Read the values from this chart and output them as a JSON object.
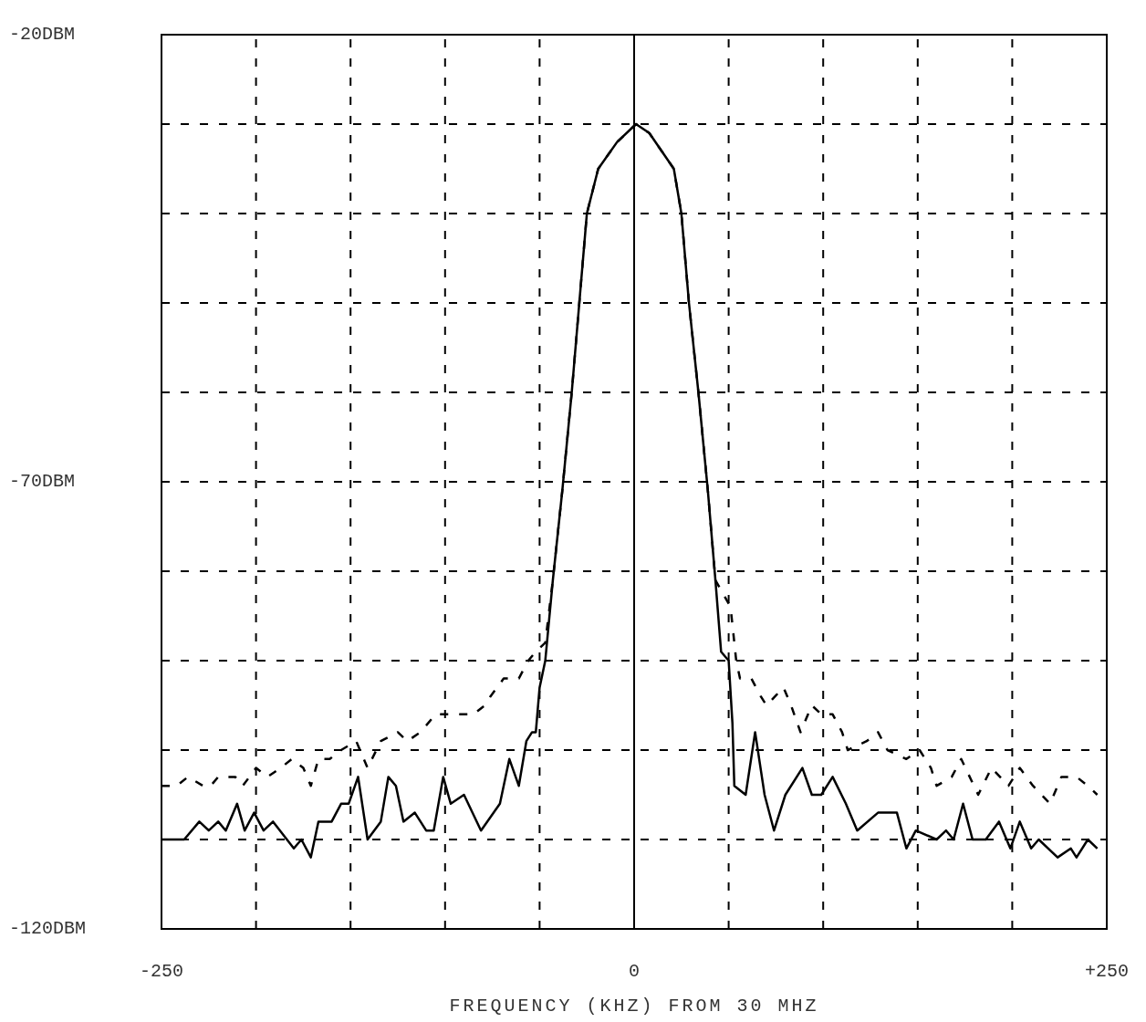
{
  "chart_data": {
    "type": "line",
    "xlabel": "FREQUENCY (KHZ) FROM 30 MHZ",
    "xlim": [
      -250,
      250
    ],
    "xticks": [
      -250,
      {
        "value": -200,
        "label": null
      },
      {
        "value": -150,
        "label": null
      },
      {
        "value": -100,
        "label": null
      },
      {
        "value": -50,
        "label": null
      },
      0,
      {
        "value": 50,
        "label": null
      },
      {
        "value": 100,
        "label": null
      },
      {
        "value": 150,
        "label": null
      },
      {
        "value": 200,
        "label": null
      },
      {
        "value": 250,
        "label": "+250"
      }
    ],
    "ylim": [
      -120,
      -20
    ],
    "yticks": [
      {
        "value": -20,
        "label": "-20DBM"
      },
      {
        "value": -30,
        "label": null
      },
      {
        "value": -40,
        "label": null
      },
      {
        "value": -50,
        "label": null
      },
      {
        "value": -60,
        "label": null
      },
      {
        "value": -70,
        "label": "-70DBM"
      },
      {
        "value": -80,
        "label": null
      },
      {
        "value": -90,
        "label": null
      },
      {
        "value": -100,
        "label": null
      },
      {
        "value": -110,
        "label": null
      },
      {
        "value": -120,
        "label": "-120DBM"
      }
    ],
    "grid": true,
    "ref_lines": [
      {
        "axis": "x",
        "value": 0,
        "color": "#000000",
        "line_style": "solid"
      }
    ],
    "series": [
      {
        "color": "#000000",
        "line_style": "solid",
        "x": [
          -250,
          -238,
          -230,
          -225,
          -220,
          -216,
          -210,
          -206,
          -201,
          -196,
          -191,
          -180,
          -176,
          -171,
          -167,
          -160,
          -155,
          -151,
          -146,
          -141,
          -134,
          -130,
          -126,
          -122,
          -116,
          -110,
          -106,
          -101,
          -97,
          -90,
          -81,
          -71,
          -66,
          -61,
          -57,
          -54,
          -52,
          -50,
          -47,
          -43,
          -38,
          -33,
          -29,
          -25,
          -19,
          -9,
          1,
          8,
          21,
          25,
          29,
          34,
          39,
          43,
          46,
          50,
          52,
          53,
          59,
          64,
          69,
          74,
          80,
          89,
          94,
          99,
          105,
          112,
          118,
          129,
          134,
          139,
          144,
          149,
          160,
          165,
          169,
          174,
          179,
          186,
          193,
          199,
          204,
          210,
          214,
          224,
          231,
          234,
          240,
          245
        ],
        "values": [
          -110,
          -110,
          -108,
          -109,
          -108,
          -109,
          -106,
          -109,
          -107,
          -109,
          -108,
          -111,
          -110,
          -112,
          -108,
          -108,
          -106,
          -106,
          -103,
          -110,
          -108,
          -103,
          -104,
          -108,
          -107,
          -109,
          -109,
          -103,
          -106,
          -105,
          -109,
          -106,
          -101,
          -104,
          -99,
          -98,
          -98,
          -93,
          -90,
          -81,
          -71,
          -60,
          -50,
          -40,
          -35,
          -32,
          -30,
          -31,
          -35,
          -40,
          -50,
          -60,
          -71,
          -81,
          -89,
          -90,
          -97,
          -104,
          -105,
          -98,
          -105,
          -109,
          -105,
          -102,
          -105,
          -105,
          -103,
          -106,
          -109,
          -107,
          -107,
          -107,
          -111,
          -109,
          -110,
          -109,
          -110,
          -106,
          -110,
          -110,
          -108,
          -111,
          -108,
          -111,
          -110,
          -112,
          -111,
          -112,
          -110,
          -111
        ]
      },
      {
        "color": "#000000",
        "line_style": "dashed",
        "x": [
          -250,
          -242,
          -236,
          -228,
          -224,
          -220,
          -211,
          -207,
          -200,
          -194,
          -187,
          -181,
          -175,
          -171,
          -167,
          -161,
          -155,
          -147,
          -141,
          -134,
          -125,
          -120,
          -113,
          -105,
          -85,
          -79,
          -76,
          -69,
          -61,
          -56,
          -52,
          -47,
          -43,
          -38,
          -33,
          -29,
          -25,
          -19,
          -9,
          1,
          8,
          21,
          25,
          29,
          34,
          39,
          43,
          51,
          54,
          56,
          62,
          67,
          70,
          79,
          83,
          88,
          94,
          99,
          105,
          110,
          113,
          123,
          129,
          134,
          144,
          151,
          157,
          160,
          168,
          173,
          182,
          189,
          198,
          204,
          211,
          220,
          226,
          234,
          240,
          245
        ],
        "values": [
          -104,
          -104,
          -103,
          -104,
          -104,
          -103,
          -103,
          -104,
          -102,
          -103,
          -102,
          -101,
          -102,
          -104,
          -101,
          -101,
          -100,
          -99,
          -102,
          -99,
          -98,
          -99,
          -98,
          -96,
          -96,
          -95,
          -94,
          -92,
          -92,
          -90,
          -89,
          -88,
          -81,
          -71,
          -60,
          -50,
          -40,
          -35,
          -32,
          -30,
          -31,
          -35,
          -40,
          -50,
          -60,
          -71,
          -81,
          -84,
          -90,
          -92,
          -92,
          -94,
          -95,
          -93,
          -95,
          -98,
          -95,
          -96,
          -96,
          -98,
          -100,
          -99,
          -98,
          -100,
          -101,
          -100,
          -102,
          -104,
          -103,
          -101,
          -105,
          -102,
          -104,
          -102,
          -104,
          -106,
          -103,
          -103,
          -104,
          -105
        ]
      }
    ]
  }
}
